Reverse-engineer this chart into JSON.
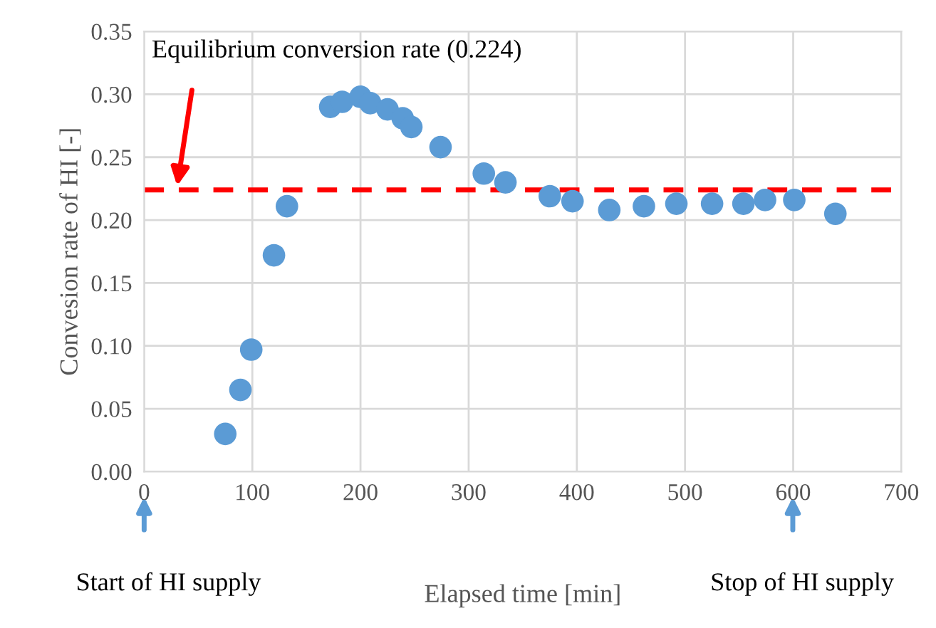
{
  "chart_data": {
    "type": "scatter",
    "xlabel": "Elapsed time [min]",
    "ylabel": "Convesion rate of HI [-]",
    "x": [
      75,
      89,
      99,
      120,
      132,
      172,
      183,
      200,
      209,
      225,
      239,
      247,
      274,
      314,
      334,
      375,
      396,
      430,
      462,
      492,
      525,
      554,
      574,
      601,
      639
    ],
    "series": [
      {
        "color": "#5b9bd5",
        "values": [
          0.03,
          0.065,
          0.097,
          0.172,
          0.211,
          0.29,
          0.294,
          0.298,
          0.293,
          0.288,
          0.281,
          0.274,
          0.258,
          0.237,
          0.23,
          0.219,
          0.215,
          0.208,
          0.211,
          0.213,
          0.213,
          0.213,
          0.216,
          0.216,
          0.205
        ]
      }
    ],
    "marker": "circle",
    "xlim": [
      0,
      700
    ],
    "xticks": [
      0,
      100,
      200,
      300,
      400,
      500,
      600,
      700
    ],
    "ylim": [
      0,
      0.35
    ],
    "yticks": [
      {
        "value": 0,
        "label": "0.00"
      },
      {
        "value": 0.05,
        "label": "0.05"
      },
      {
        "value": 0.1,
        "label": "0.10"
      },
      {
        "value": 0.15,
        "label": "0.15"
      },
      {
        "value": 0.2,
        "label": "0.20"
      },
      {
        "value": 0.25,
        "label": "0.25"
      },
      {
        "value": 0.3,
        "label": "0.30"
      },
      {
        "value": 0.35,
        "label": "0.35"
      }
    ],
    "grid": true,
    "ref_lines": [
      {
        "axis": "y",
        "value": 0.224,
        "label": "Equilibrium conversion rate (0.224)",
        "color": "#ff0000",
        "line_style": "dashed"
      }
    ],
    "annotations": [
      "Start of HI supply",
      "Stop of HI supply"
    ]
  }
}
